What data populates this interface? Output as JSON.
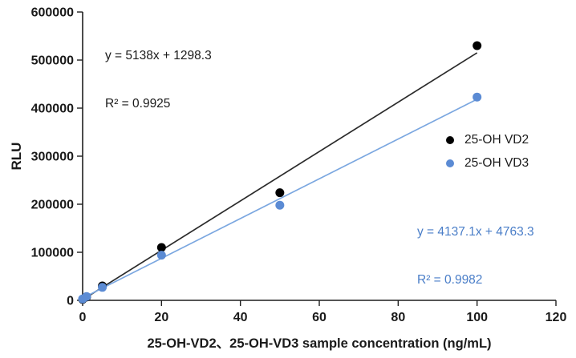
{
  "chart_data": {
    "type": "scatter",
    "title": "",
    "xlabel": "25-OH-VD2、25-OH-VD3 sample concentration (ng/mL)",
    "ylabel": "RLU",
    "xlim": [
      0,
      120
    ],
    "ylim": [
      0,
      600000
    ],
    "x_ticks": [
      0,
      20,
      40,
      60,
      80,
      100,
      120
    ],
    "y_ticks": [
      0,
      100000,
      200000,
      300000,
      400000,
      500000,
      600000
    ],
    "grid": false,
    "axis_color": "#1f1f1f",
    "legend_position": "right-middle",
    "series": [
      {
        "name": "25-OH VD2",
        "marker_color": "#000000",
        "line_color": "#2b2b2b",
        "points": [
          [
            0,
            2000
          ],
          [
            1,
            7000
          ],
          [
            5,
            30000
          ],
          [
            20,
            110000
          ],
          [
            50,
            224000
          ],
          [
            100,
            530000
          ]
        ],
        "trendline": {
          "slope": 5138,
          "intercept": 1298.3,
          "x_range": [
            0,
            100
          ],
          "equation": "y = 5138x + 1298.3",
          "r2": "R² = 0.9925",
          "label_color": "#1a1a1a"
        }
      },
      {
        "name": "25-OH VD3",
        "marker_color": "#5b8bd4",
        "line_color": "#7ba7e0",
        "points": [
          [
            0,
            3000
          ],
          [
            1,
            8000
          ],
          [
            5,
            27000
          ],
          [
            20,
            94000
          ],
          [
            50,
            198000
          ],
          [
            100,
            423000
          ]
        ],
        "trendline": {
          "slope": 4137.1,
          "intercept": 4763.3,
          "x_range": [
            0,
            100
          ],
          "equation": "y = 4137.1x + 4763.3",
          "r2": "R² = 0.9982",
          "label_color": "#4a7ec8"
        }
      }
    ]
  }
}
